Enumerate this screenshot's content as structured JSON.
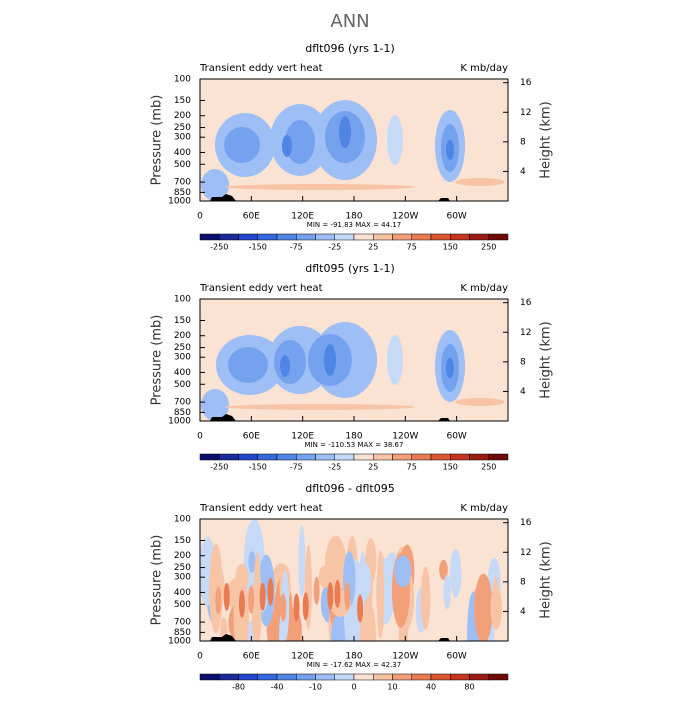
{
  "title": "ANN",
  "chart_data": [
    {
      "type": "contour",
      "title": "dflt096 (yrs 1-1)",
      "left_label": "Transient eddy vert heat",
      "right_label": "K mb/day",
      "ylabel": "Pressure (mb)",
      "y2label": "Height (km)",
      "stats": "MIN = -91.83   MAX =  44.17",
      "xlim": [
        0,
        360
      ],
      "xticks": [
        0,
        {
          "value": 60,
          "label": "60E"
        },
        {
          "value": 120,
          "label": "120E"
        },
        180,
        {
          "value": 240,
          "label": "120W"
        },
        {
          "value": 300,
          "label": "60W"
        }
      ],
      "ylim": [
        1000,
        100
      ],
      "log_y": true,
      "yticks": [
        100,
        150,
        200,
        250,
        300,
        400,
        500,
        700,
        850,
        1000
      ],
      "y2lim": [
        0,
        16.5
      ],
      "y2ticks": [
        4,
        8,
        12,
        16
      ],
      "colorbar": {
        "labels": [
          -250,
          -150,
          -75,
          -25,
          25,
          75,
          150,
          250
        ],
        "colors": [
          "#0b0f6b",
          "#1a2a9c",
          "#2446c8",
          "#3567dd",
          "#4f86e6",
          "#74a2ee",
          "#9dbff5",
          "#c6daf8",
          "#fbe3d3",
          "#f8c4a6",
          "#f2a07a",
          "#ea7a52",
          "#db5632",
          "#c43620",
          "#9a1c12",
          "#6e0a08"
        ]
      }
    },
    {
      "type": "contour",
      "title": "dflt095 (yrs 1-1)",
      "left_label": "Transient eddy vert heat",
      "right_label": "K mb/day",
      "ylabel": "Pressure (mb)",
      "y2label": "Height (km)",
      "stats": "MIN = -110.53   MAX =  38.67",
      "xlim": [
        0,
        360
      ],
      "xticks": [
        0,
        {
          "value": 60,
          "label": "60E"
        },
        {
          "value": 120,
          "label": "120E"
        },
        180,
        {
          "value": 240,
          "label": "120W"
        },
        {
          "value": 300,
          "label": "60W"
        }
      ],
      "ylim": [
        1000,
        100
      ],
      "log_y": true,
      "yticks": [
        100,
        150,
        200,
        250,
        300,
        400,
        500,
        700,
        850,
        1000
      ],
      "y2lim": [
        0,
        16.5
      ],
      "y2ticks": [
        4,
        8,
        12,
        16
      ],
      "colorbar": {
        "labels": [
          -250,
          -150,
          -75,
          -25,
          25,
          75,
          150,
          250
        ],
        "colors": [
          "#0b0f6b",
          "#1a2a9c",
          "#2446c8",
          "#3567dd",
          "#4f86e6",
          "#74a2ee",
          "#9dbff5",
          "#c6daf8",
          "#fbe3d3",
          "#f8c4a6",
          "#f2a07a",
          "#ea7a52",
          "#db5632",
          "#c43620",
          "#9a1c12",
          "#6e0a08"
        ]
      }
    },
    {
      "type": "contour",
      "title": "dflt096 - dflt095",
      "left_label": "Transient eddy vert heat",
      "right_label": "K mb/day",
      "ylabel": "Pressure (mb)",
      "y2label": "Height (km)",
      "stats": "MIN = -17.62   MAX =  42.37",
      "xlim": [
        0,
        360
      ],
      "xticks": [
        0,
        {
          "value": 60,
          "label": "60E"
        },
        {
          "value": 120,
          "label": "120E"
        },
        180,
        {
          "value": 240,
          "label": "120W"
        },
        {
          "value": 300,
          "label": "60W"
        }
      ],
      "ylim": [
        1000,
        100
      ],
      "log_y": true,
      "yticks": [
        100,
        150,
        200,
        250,
        300,
        400,
        500,
        700,
        850,
        1000
      ],
      "y2lim": [
        0,
        16.5
      ],
      "y2ticks": [
        4,
        8,
        12,
        16
      ],
      "colorbar": {
        "labels": [
          -80,
          -40,
          -10,
          0,
          10,
          40,
          80
        ],
        "colors": [
          "#0b0f6b",
          "#1a2a9c",
          "#2446c8",
          "#3567dd",
          "#4f86e6",
          "#74a2ee",
          "#9dbff5",
          "#c6daf8",
          "#fbe3d3",
          "#f8c4a6",
          "#f2a07a",
          "#ea7a52",
          "#db5632",
          "#c43620",
          "#9a1c12",
          "#6e0a08"
        ]
      }
    }
  ]
}
